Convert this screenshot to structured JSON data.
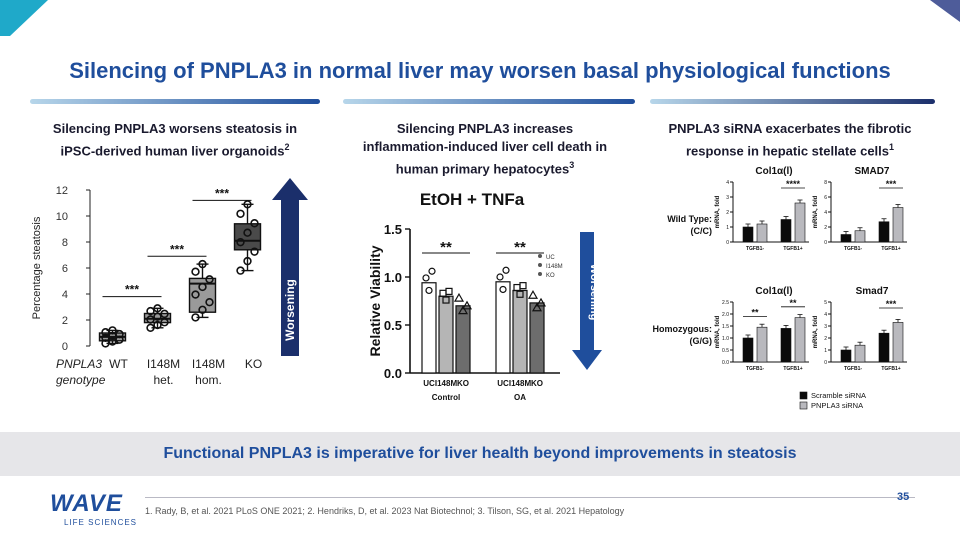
{
  "slide": {
    "title": "Silencing of PNPLA3 in normal liver may worsen basal physiological functions",
    "takeaway": "Functional PNPLA3 is imperative for liver health beyond improvements in steatosis",
    "page_number": "35",
    "references": "1. Rady, B, et al. 2021 PLoS ONE 2021;  2. Hendriks, D, et al. 2023 Nat Biotechnol;  3. Tilson, SG, et al. 2021 Hepatology",
    "logo_word": "WAVE",
    "logo_sub": "LIFE SCIENCES",
    "colors": {
      "brand": "#1f4e9c",
      "bar_dark": "#0b0b0b",
      "bar_light": "#b9b9be",
      "arrow_navy": "#1b2f6b",
      "arrow_blue": "#1f4e9c"
    }
  },
  "panels": [
    {
      "title": "Silencing PNPLA3 worsens steatosis in",
      "title_line2": "iPSC-derived human liver organoids",
      "sup": "2"
    },
    {
      "title": "Silencing PNPLA3 increases",
      "title_line2": "inflammation-induced liver cell death in",
      "title_line3": "human primary hepatocytes",
      "sup": "3"
    },
    {
      "title": "PNPLA3 siRNA exacerbates the fibrotic",
      "title_line2": "response in hepatic stellate cells",
      "sup": "1"
    }
  ],
  "arrows": {
    "left_label": "Worsening",
    "middle_label": "Worsening"
  },
  "chart_data": [
    {
      "type": "box",
      "ylabel": "Percentage steatosis",
      "ylim": [
        0,
        12
      ],
      "yticks": [
        0,
        2,
        4,
        6,
        8,
        10,
        12
      ],
      "xlabel_prefix": "PNPLA3",
      "xlabel_row2": "genotype",
      "categories": [
        {
          "line1": "WT",
          "line2": ""
        },
        {
          "line1": "I148M",
          "line2": "het."
        },
        {
          "line1": "I148M",
          "line2": "hom."
        },
        {
          "line1": "KO",
          "line2": ""
        }
      ],
      "boxes": [
        {
          "min": 0.2,
          "q1": 0.4,
          "median": 0.7,
          "q3": 1.0,
          "max": 1.2
        },
        {
          "min": 1.4,
          "q1": 1.8,
          "median": 2.1,
          "q3": 2.5,
          "max": 2.9
        },
        {
          "min": 2.2,
          "q1": 2.6,
          "median": 4.8,
          "q3": 5.2,
          "max": 6.3
        },
        {
          "min": 5.8,
          "q1": 7.4,
          "median": 8.1,
          "q3": 9.4,
          "max": 10.9
        }
      ],
      "significance": [
        {
          "label": "***",
          "from": 0,
          "to": 1,
          "y": 3.8
        },
        {
          "label": "***",
          "from": 1,
          "to": 2,
          "y": 6.9
        },
        {
          "label": "***",
          "from": 2,
          "to": 3,
          "y": 11.2
        }
      ]
    },
    {
      "type": "bar",
      "title": "EtOH + TNFa",
      "ylabel": "Relative Viability",
      "ylim": [
        0,
        1.5
      ],
      "yticks": [
        "0.0",
        "0.5",
        "1.0",
        "1.5"
      ],
      "groups": [
        "Control",
        "OA"
      ],
      "categories": [
        "UC",
        "I148M",
        "KO"
      ],
      "legend": [
        "UC",
        "I148M",
        "KO"
      ],
      "series": [
        {
          "group": "Control",
          "values": [
            0.94,
            0.8,
            0.7
          ]
        },
        {
          "group": "OA",
          "values": [
            0.95,
            0.86,
            0.73
          ]
        }
      ],
      "significance": [
        {
          "label": "**",
          "group": "Control"
        },
        {
          "label": "**",
          "group": "OA"
        }
      ]
    },
    {
      "type": "bar",
      "title": "Col1α(l)",
      "row_label": "Wild Type: (C/C)",
      "ylabel": "mRNA, fold",
      "ylim": [
        0,
        4
      ],
      "yticks": [
        "0",
        "1",
        "2",
        "3",
        "4"
      ],
      "categories": [
        "TGFB1-",
        "TGFB1+"
      ],
      "series": [
        {
          "name": "Scramble siRNA",
          "values": [
            1.0,
            1.5
          ]
        },
        {
          "name": "PNPLA3 siRNA",
          "values": [
            1.2,
            2.6
          ]
        }
      ],
      "significance": "****"
    },
    {
      "type": "bar",
      "title": "SMAD7",
      "row_label": "Wild Type: (C/C)",
      "ylabel": "mRNA, fold",
      "ylim": [
        0,
        8
      ],
      "yticks": [
        "0",
        "2",
        "4",
        "6",
        "8"
      ],
      "categories": [
        "TGFB1-",
        "TGFB1+"
      ],
      "series": [
        {
          "name": "Scramble siRNA",
          "values": [
            1.0,
            2.7
          ]
        },
        {
          "name": "PNPLA3 siRNA",
          "values": [
            1.5,
            4.6
          ]
        }
      ],
      "significance": "***"
    },
    {
      "type": "bar",
      "title": "Col1α(l)",
      "row_label": "Homozygous: (G/G)",
      "ylabel": "mRNA, fold",
      "ylim": [
        0,
        2.5
      ],
      "yticks": [
        "0.0",
        "0.5",
        "1.0",
        "1.5",
        "2.0",
        "2.5"
      ],
      "categories": [
        "TGFB1-",
        "TGFB1+"
      ],
      "series": [
        {
          "name": "Scramble siRNA",
          "values": [
            1.0,
            1.4
          ]
        },
        {
          "name": "PNPLA3 siRNA",
          "values": [
            1.45,
            1.85
          ]
        }
      ],
      "significance": [
        "**",
        "**"
      ]
    },
    {
      "type": "bar",
      "title": "Smad7",
      "row_label": "Homozygous: (G/G)",
      "ylabel": "mRNA, fold",
      "ylim": [
        0,
        5
      ],
      "yticks": [
        "0",
        "1",
        "2",
        "3",
        "4",
        "5"
      ],
      "categories": [
        "TGFB1-",
        "TGFB1+"
      ],
      "series": [
        {
          "name": "Scramble siRNA",
          "values": [
            1.0,
            2.4
          ]
        },
        {
          "name": "PNPLA3 siRNA",
          "values": [
            1.4,
            3.3
          ]
        }
      ],
      "significance": "***"
    }
  ],
  "fibrosis_legend": [
    "Scramble siRNA",
    "PNPLA3 siRNA"
  ]
}
